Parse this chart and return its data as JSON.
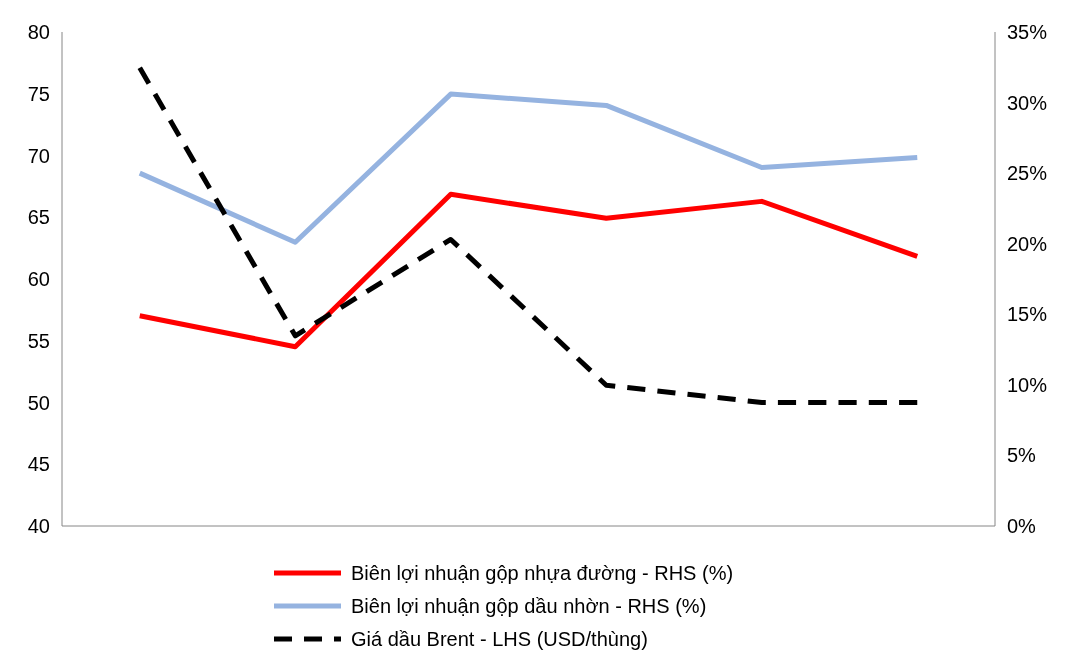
{
  "chart_data": {
    "type": "line",
    "categories": [
      null,
      null,
      null,
      null,
      null,
      null
    ],
    "series": [
      {
        "name": "Biên lợi nhuận gộp nhựa đường - RHS (%)",
        "color": "#ff0000",
        "axis": "y2",
        "values": [
          14.9,
          12.7,
          23.5,
          21.8,
          23.0,
          19.1
        ]
      },
      {
        "name": "Biên lợi nhuận gộp dầu nhờn - RHS (%)",
        "color": "#95b3e0",
        "axis": "y2",
        "values": [
          25.0,
          20.1,
          30.6,
          29.8,
          25.4,
          26.1
        ]
      },
      {
        "name": "Giá dầu Brent - LHS (USD/thùng)",
        "color": "#000000",
        "line_style": "dashed",
        "values": [
          77.1,
          55.4,
          63.2,
          51.4,
          50.0,
          50.0
        ]
      }
    ],
    "ylim": [
      40,
      80
    ],
    "yticks": [
      40,
      45,
      50,
      55,
      60,
      65,
      70,
      75,
      80
    ],
    "y2lim": [
      0,
      35
    ],
    "y2ticks": [
      {
        "value": 0,
        "label": "0%"
      },
      {
        "value": 5,
        "label": "5%"
      },
      {
        "value": 10,
        "label": "10%"
      },
      {
        "value": 15,
        "label": "15%"
      },
      {
        "value": 20,
        "label": "20%"
      },
      {
        "value": 25,
        "label": "25%"
      },
      {
        "value": 30,
        "label": "30%"
      },
      {
        "value": 35,
        "label": "35%"
      }
    ],
    "grid": false,
    "legend": "bottom",
    "marker": "none"
  }
}
